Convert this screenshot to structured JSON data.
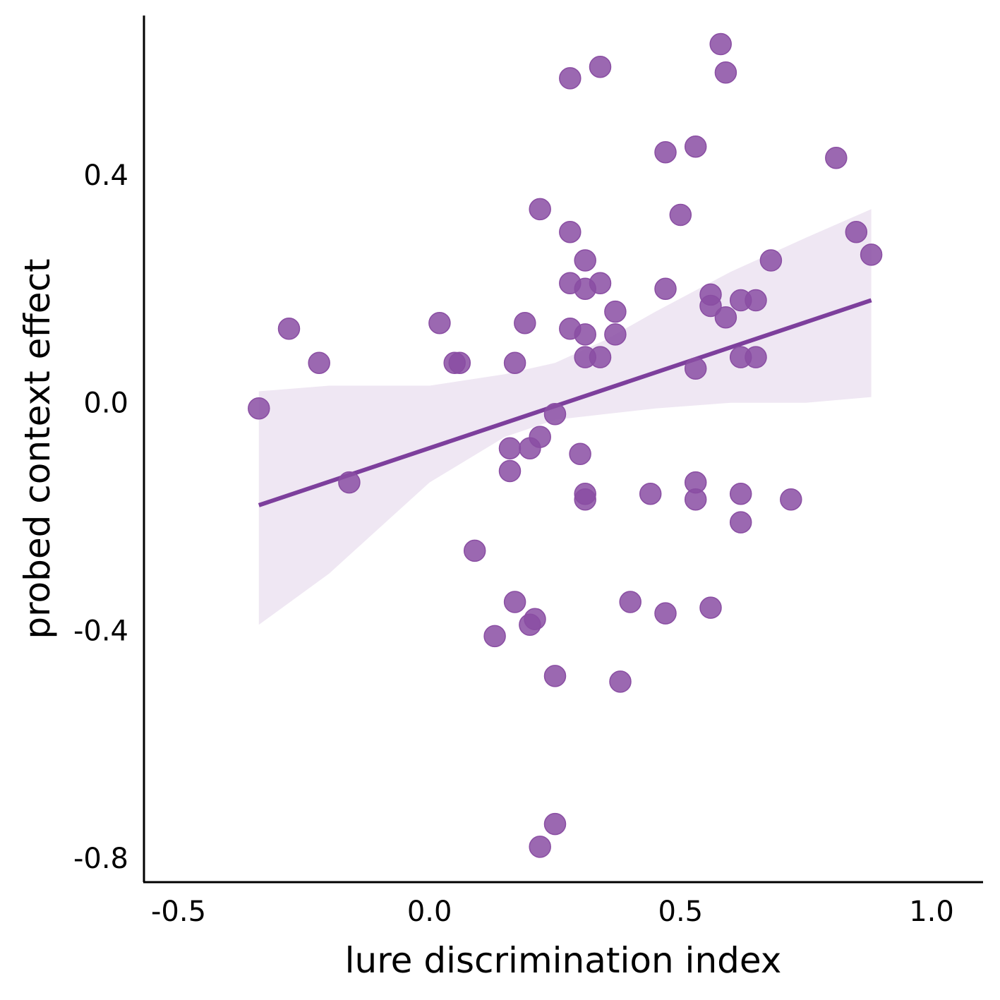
{
  "chart_data": {
    "type": "scatter",
    "title": "",
    "xlabel": "lure discrimination index",
    "ylabel": "probed context effect",
    "xlim": [
      -0.52,
      1.12
    ],
    "ylim": [
      -0.86,
      0.7
    ],
    "xticks": [
      -0.5,
      0.0,
      0.5,
      1.0
    ],
    "xtick_labels": [
      "-0.5",
      "0.0",
      "0.5",
      "1.0"
    ],
    "yticks": [
      -0.8,
      -0.4,
      0.0,
      0.4
    ],
    "ytick_labels": [
      "-0.8",
      "-0.4",
      "0.0",
      "0.4"
    ],
    "grid": false,
    "colors": {
      "points": "#8a4ea3",
      "line": "#7d3f9c",
      "band": "#efe7f3",
      "axis": "#000000"
    },
    "points": [
      {
        "x": -0.34,
        "y": -0.01
      },
      {
        "x": -0.28,
        "y": 0.13
      },
      {
        "x": -0.22,
        "y": 0.07
      },
      {
        "x": -0.16,
        "y": -0.14
      },
      {
        "x": 0.02,
        "y": 0.14
      },
      {
        "x": 0.05,
        "y": 0.07
      },
      {
        "x": 0.06,
        "y": 0.07
      },
      {
        "x": 0.09,
        "y": -0.26
      },
      {
        "x": 0.13,
        "y": -0.41
      },
      {
        "x": 0.16,
        "y": -0.08
      },
      {
        "x": 0.16,
        "y": -0.12
      },
      {
        "x": 0.17,
        "y": 0.07
      },
      {
        "x": 0.17,
        "y": -0.35
      },
      {
        "x": 0.19,
        "y": 0.14
      },
      {
        "x": 0.2,
        "y": -0.08
      },
      {
        "x": 0.2,
        "y": -0.39
      },
      {
        "x": 0.21,
        "y": -0.38
      },
      {
        "x": 0.22,
        "y": -0.06
      },
      {
        "x": 0.22,
        "y": 0.34
      },
      {
        "x": 0.22,
        "y": -0.78
      },
      {
        "x": 0.25,
        "y": -0.02
      },
      {
        "x": 0.25,
        "y": -0.48
      },
      {
        "x": 0.25,
        "y": -0.74
      },
      {
        "x": 0.28,
        "y": 0.13
      },
      {
        "x": 0.28,
        "y": 0.21
      },
      {
        "x": 0.28,
        "y": 0.3
      },
      {
        "x": 0.28,
        "y": 0.57
      },
      {
        "x": 0.3,
        "y": -0.09
      },
      {
        "x": 0.31,
        "y": 0.08
      },
      {
        "x": 0.31,
        "y": 0.12
      },
      {
        "x": 0.31,
        "y": 0.2
      },
      {
        "x": 0.31,
        "y": 0.25
      },
      {
        "x": 0.31,
        "y": -0.16
      },
      {
        "x": 0.31,
        "y": -0.17
      },
      {
        "x": 0.34,
        "y": 0.08
      },
      {
        "x": 0.34,
        "y": 0.21
      },
      {
        "x": 0.34,
        "y": 0.59
      },
      {
        "x": 0.37,
        "y": 0.16
      },
      {
        "x": 0.37,
        "y": 0.12
      },
      {
        "x": 0.38,
        "y": -0.49
      },
      {
        "x": 0.4,
        "y": -0.35
      },
      {
        "x": 0.44,
        "y": -0.16
      },
      {
        "x": 0.47,
        "y": 0.2
      },
      {
        "x": 0.47,
        "y": 0.44
      },
      {
        "x": 0.47,
        "y": -0.37
      },
      {
        "x": 0.5,
        "y": 0.33
      },
      {
        "x": 0.53,
        "y": 0.45
      },
      {
        "x": 0.53,
        "y": 0.06
      },
      {
        "x": 0.53,
        "y": -0.14
      },
      {
        "x": 0.53,
        "y": -0.17
      },
      {
        "x": 0.56,
        "y": 0.19
      },
      {
        "x": 0.56,
        "y": 0.17
      },
      {
        "x": 0.56,
        "y": -0.36
      },
      {
        "x": 0.58,
        "y": 0.63
      },
      {
        "x": 0.59,
        "y": 0.58
      },
      {
        "x": 0.59,
        "y": 0.15
      },
      {
        "x": 0.62,
        "y": 0.18
      },
      {
        "x": 0.62,
        "y": 0.08
      },
      {
        "x": 0.62,
        "y": -0.16
      },
      {
        "x": 0.62,
        "y": -0.21
      },
      {
        "x": 0.65,
        "y": 0.18
      },
      {
        "x": 0.65,
        "y": 0.08
      },
      {
        "x": 0.68,
        "y": 0.25
      },
      {
        "x": 0.72,
        "y": -0.17
      },
      {
        "x": 0.81,
        "y": 0.43
      },
      {
        "x": 0.85,
        "y": 0.3
      },
      {
        "x": 0.88,
        "y": 0.26
      }
    ],
    "regression": {
      "x": [
        -0.34,
        0.88
      ],
      "y": [
        -0.18,
        0.18
      ]
    },
    "confidence_band": [
      {
        "x": -0.34,
        "lo": -0.39,
        "hi": 0.02
      },
      {
        "x": -0.2,
        "lo": -0.3,
        "hi": 0.03
      },
      {
        "x": 0.0,
        "lo": -0.14,
        "hi": 0.03
      },
      {
        "x": 0.15,
        "lo": -0.06,
        "hi": 0.05
      },
      {
        "x": 0.25,
        "lo": -0.03,
        "hi": 0.07
      },
      {
        "x": 0.35,
        "lo": -0.02,
        "hi": 0.11
      },
      {
        "x": 0.45,
        "lo": -0.01,
        "hi": 0.16
      },
      {
        "x": 0.6,
        "lo": 0.0,
        "hi": 0.23
      },
      {
        "x": 0.75,
        "lo": 0.0,
        "hi": 0.29
      },
      {
        "x": 0.88,
        "lo": 0.01,
        "hi": 0.34
      }
    ]
  }
}
